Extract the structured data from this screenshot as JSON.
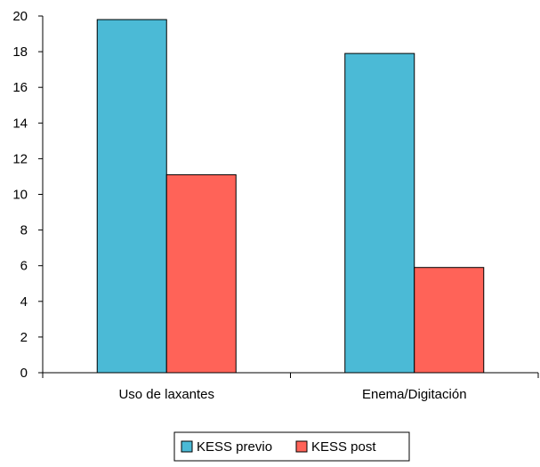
{
  "chart_data": {
    "type": "bar",
    "title": "",
    "xlabel": "",
    "ylabel": "",
    "categories": [
      "Uso de laxantes",
      "Enema/Digitación"
    ],
    "series": [
      {
        "name": "KESS previo",
        "values": [
          19.8,
          17.9
        ],
        "color": "#4BBAD6"
      },
      {
        "name": "KESS post",
        "values": [
          11.1,
          5.9
        ],
        "color": "#FF6358"
      }
    ],
    "ylim": [
      0,
      20
    ],
    "yticks": [
      0,
      2,
      4,
      6,
      8,
      10,
      12,
      14,
      16,
      18,
      20
    ],
    "grid": false,
    "legend_position": "bottom"
  }
}
